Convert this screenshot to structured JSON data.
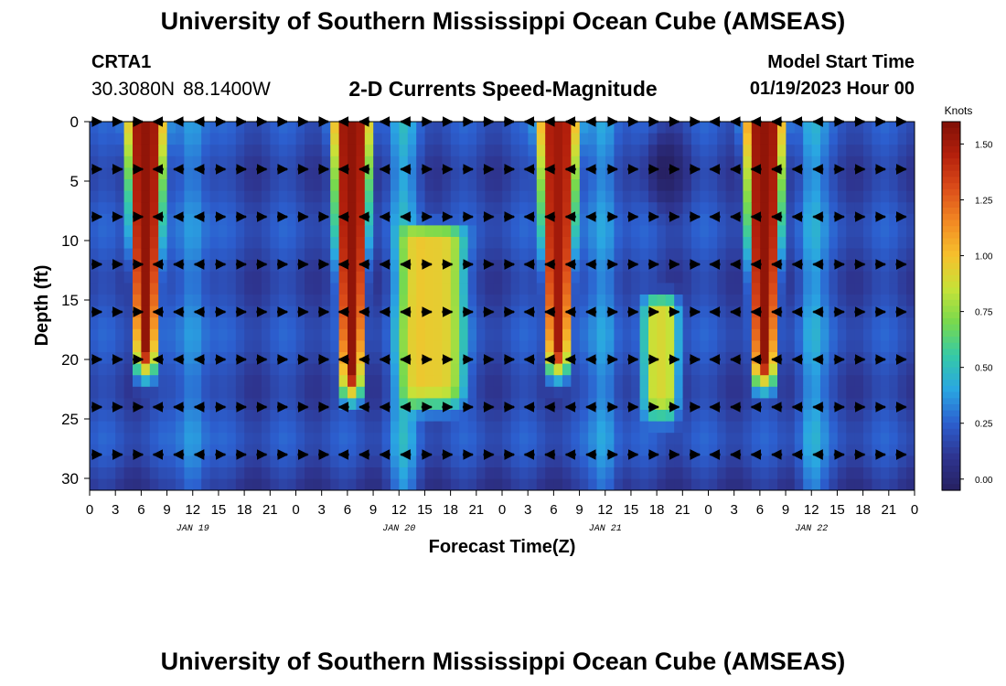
{
  "header": {
    "title": "University of Southern Mississippi Ocean Cube (AMSEAS)",
    "station": "CRTA1",
    "latitude": "30.3080N",
    "longitude": "88.1400W",
    "subtitle": "2-D Currents Speed-Magnitude",
    "model_start_label": "Model Start Time",
    "model_start_value": "01/19/2023 Hour 00"
  },
  "footer": {
    "title": "University of Southern Mississippi Ocean Cube (AMSEAS)"
  },
  "chart_data": {
    "type": "heatmap",
    "title": "2-D Currents Speed-Magnitude",
    "xlabel": "Forecast Time(Z)",
    "ylabel": "Depth (ft)",
    "xlim": [
      0,
      96
    ],
    "ylim": [
      0,
      31
    ],
    "x_tick_labels": [
      "0",
      "3",
      "6",
      "9",
      "12",
      "15",
      "18",
      "21",
      "0",
      "3",
      "6",
      "9",
      "12",
      "15",
      "18",
      "21",
      "0",
      "3",
      "6",
      "9",
      "12",
      "15",
      "18",
      "21",
      "0",
      "3",
      "6",
      "9",
      "12",
      "15",
      "18",
      "21",
      "0"
    ],
    "y_ticks": [
      0,
      5,
      10,
      15,
      20,
      25,
      30
    ],
    "day_labels": [
      {
        "hour": 12,
        "label": "JAN 19"
      },
      {
        "hour": 36,
        "label": "JAN 20"
      },
      {
        "hour": 60,
        "label": "JAN 21"
      },
      {
        "hour": 84,
        "label": "JAN 22"
      }
    ],
    "colorbar": {
      "title": "Knots",
      "range": [
        -0.05,
        1.6
      ],
      "ticks": [
        "0.00",
        "0.25",
        "0.50",
        "0.75",
        "1.00",
        "1.25",
        "1.50"
      ],
      "colors": [
        "#262061",
        "#2e3590",
        "#2c5fcf",
        "#2aa6e2",
        "#35c9a8",
        "#77d94e",
        "#c6e238",
        "#f6c12d",
        "#f28a23",
        "#dc4d1a",
        "#b4200c",
        "#7f0f06"
      ]
    },
    "speed_field_description": "current speed (knots) by forecast hour and depth (ft)",
    "speed_components": [
      {
        "hour": 6.5,
        "depth_max": 19,
        "speed": 1.55,
        "time_width": 2.3
      },
      {
        "hour": 30.5,
        "depth_max": 21,
        "speed": 1.55,
        "time_width": 2.3
      },
      {
        "hour": 40,
        "depth_min": 10,
        "depth_max": 22,
        "speed": 0.95,
        "time_width": 3.5
      },
      {
        "hour": 54.5,
        "depth_max": 19,
        "speed": 1.5,
        "time_width": 2.4
      },
      {
        "hour": 78.5,
        "depth_max": 20,
        "speed": 1.55,
        "time_width": 2.4
      },
      {
        "hour": 66.5,
        "depth_min": 16,
        "depth_max": 23,
        "speed": 0.9,
        "time_width": 2.0
      }
    ],
    "low_speed_core": {
      "hour": 67,
      "depth": 4,
      "speed": -0.05
    },
    "arrow_depths": [
      0,
      4,
      8,
      12,
      16,
      20,
      24,
      28
    ],
    "arrow_hour_step": 2.4,
    "arrow_directions": {
      "eastward": [
        [
          0,
          6
        ],
        [
          13,
          29
        ],
        [
          37,
          50
        ],
        [
          60,
          72
        ],
        [
          85,
          96
        ]
      ],
      "westward": [
        [
          6,
          13
        ],
        [
          29,
          37
        ],
        [
          50,
          60
        ],
        [
          72,
          85
        ]
      ]
    }
  }
}
